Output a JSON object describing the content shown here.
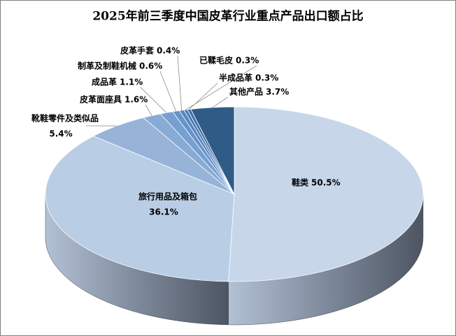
{
  "chart_data": {
    "type": "pie3d",
    "title": "2025年前三季度中国皮革行业重点产品出口额占比",
    "categories": [
      "鞋类",
      "旅行用品及箱包",
      "靴鞋零件及类似品",
      "皮革面座具",
      "成品革",
      "制革及制鞋机械",
      "皮革手套",
      "已鞣毛皮",
      "半成品革",
      "其他产品"
    ],
    "values": [
      50.5,
      36.1,
      5.4,
      1.6,
      1.1,
      0.6,
      0.4,
      0.3,
      0.3,
      3.7
    ],
    "value_labels": [
      "50.5%",
      "36.1%",
      "5.4%",
      "1.6%",
      "1.1%",
      "0.6%",
      "0.4%",
      "0.3%",
      "0.3%",
      "3.7%"
    ],
    "colors": [
      "#c8d6ea",
      "#b9cde5",
      "#97b4d8",
      "#88abd6",
      "#76a0d2",
      "#6693ca",
      "#5886c0",
      "#4d7ab3",
      "#4470a6",
      "#2f5b86"
    ]
  }
}
